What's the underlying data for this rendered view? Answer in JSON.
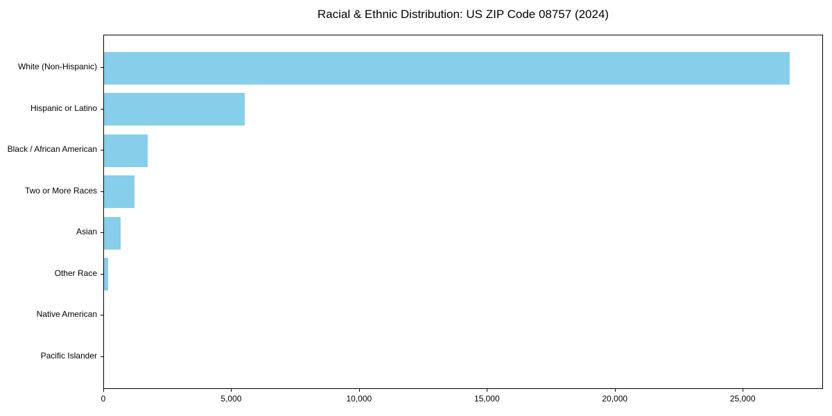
{
  "page": {
    "background_color": "#ffffff",
    "text_color": "#000000"
  },
  "chart_data": {
    "type": "bar",
    "orientation": "horizontal",
    "title": "Racial & Ethnic Distribution: US ZIP Code 08757 (2024)",
    "xlabel": "",
    "ylabel": "",
    "categories": [
      "White (Non-Hispanic)",
      "Hispanic or Latino",
      "Black / African American",
      "Two or More Races",
      "Asian",
      "Other Race",
      "Native American",
      "Pacific Islander"
    ],
    "values": [
      26800,
      5500,
      1700,
      1200,
      650,
      150,
      0,
      0
    ],
    "xlim": [
      0,
      28140
    ],
    "xticks": [
      0,
      5000,
      10000,
      15000,
      20000,
      25000
    ],
    "xtick_labels": [
      "0",
      "5,000",
      "10,000",
      "15,000",
      "20,000",
      "25,000"
    ],
    "bar_color": "#87CEEB",
    "axis_color": "#000000",
    "grid": false,
    "legend": null
  }
}
